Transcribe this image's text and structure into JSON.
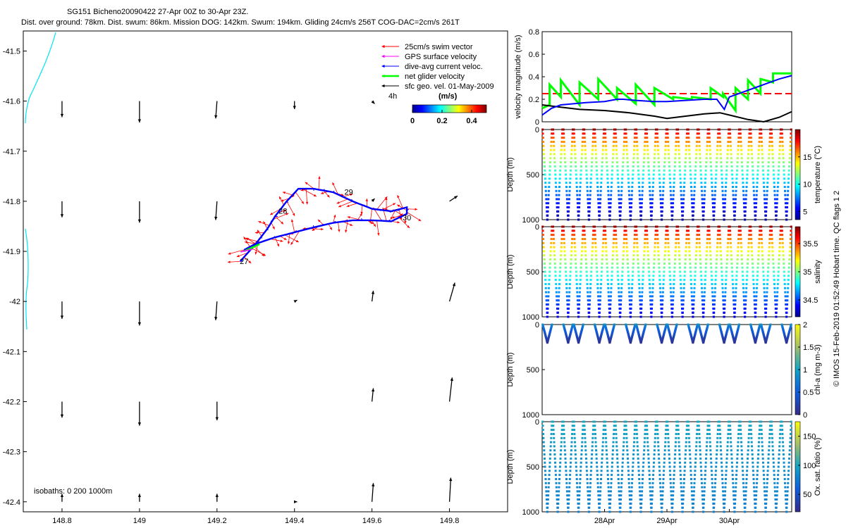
{
  "header": {
    "title": "SG151 Bicheno20090422 27-Apr 00Z to 30-Apr 23Z.",
    "subtitle": "Dist. over ground: 78km. Dist. swum: 86km. Mission DOG: 142km. Swum: 194km. Gliding 24cm/s 256T COG-DAC=2cm/s 261T"
  },
  "footer": {
    "credit": "© IMOS 15-Feb-2019 01:52:49 Hobart time. QC flags 1  2"
  },
  "colors": {
    "swim": "#ff0000",
    "gps": "#ff00ff",
    "dac": "#0000ff",
    "net": "#00ff00",
    "geo": "#000000",
    "coast": "#00e5ee",
    "speed_limit": "#ff0000"
  },
  "chart_data": [
    {
      "type": "scatter",
      "kind": "map",
      "title": "",
      "xlim": [
        148.7,
        149.95
      ],
      "ylim": [
        -42.42,
        -41.46
      ],
      "xticks": [
        148.8,
        149,
        149.2,
        149.4,
        149.6,
        149.8
      ],
      "xtick_labels": [
        "148.8",
        "149",
        "149.2",
        "149.4",
        "149.6",
        "149.8"
      ],
      "yticks": [
        -41.5,
        -41.6,
        -41.7,
        -41.8,
        -41.9,
        -42,
        -42.1,
        -42.2,
        -42.3,
        -42.4
      ],
      "ytick_labels": [
        "-41.5",
        "-41.6",
        "-41.7",
        "-41.8",
        "-41.9",
        "-42",
        "-42.1",
        "-42.2",
        "-42.3",
        "-42.4"
      ],
      "legend": {
        "placement": "top-right",
        "entries": [
          {
            "label": "25cm/s swim vector",
            "color": "#ff0000"
          },
          {
            "label": "GPS surface velocity",
            "color": "#ff00ff"
          },
          {
            "label": "dive-avg current veloc.",
            "color": "#0000ff"
          },
          {
            "label": "net glider velocity",
            "color": "#00ff00"
          },
          {
            "label": "sfc geo. vel. 01-May-2009",
            "color": "#000000"
          }
        ],
        "scale_label": "4h"
      },
      "colorbar": {
        "label": "(m/s)",
        "ticks": [
          "0",
          "0.2",
          "0.4"
        ],
        "range": [
          0,
          0.5
        ]
      },
      "isobath_note": "isobaths: 0   200  1000m",
      "day_labels": [
        {
          "text": "27",
          "lon": 149.27,
          "lat": -41.925
        },
        {
          "text": "28",
          "lon": 149.37,
          "lat": -41.825
        },
        {
          "text": "29",
          "lon": 149.54,
          "lat": -41.787
        },
        {
          "text": "30",
          "lon": 149.69,
          "lat": -41.838
        }
      ],
      "track_out": [
        [
          149.26,
          -41.92
        ],
        [
          149.3,
          -41.885
        ],
        [
          149.33,
          -41.855
        ],
        [
          149.35,
          -41.83
        ],
        [
          149.38,
          -41.8
        ],
        [
          149.41,
          -41.775
        ],
        [
          149.45,
          -41.775
        ],
        [
          149.5,
          -41.782
        ],
        [
          149.55,
          -41.8
        ],
        [
          149.6,
          -41.815
        ],
        [
          149.65,
          -41.82
        ],
        [
          149.69,
          -41.812
        ]
      ],
      "track_back": [
        [
          149.69,
          -41.825
        ],
        [
          149.65,
          -41.84
        ],
        [
          149.6,
          -41.838
        ],
        [
          149.55,
          -41.838
        ],
        [
          149.5,
          -41.843
        ],
        [
          149.45,
          -41.852
        ],
        [
          149.4,
          -41.862
        ],
        [
          149.35,
          -41.872
        ],
        [
          149.3,
          -41.885
        ],
        [
          149.27,
          -41.897
        ]
      ],
      "geo_vectors": [
        {
          "lon": 148.8,
          "lat": -41.6,
          "u": 0.0,
          "v": -0.06
        },
        {
          "lon": 149.0,
          "lat": -41.6,
          "u": 0.0,
          "v": -0.08
        },
        {
          "lon": 149.2,
          "lat": -41.6,
          "u": -0.005,
          "v": -0.065
        },
        {
          "lon": 149.4,
          "lat": -41.6,
          "u": 0.0,
          "v": -0.03
        },
        {
          "lon": 149.6,
          "lat": -41.6,
          "u": 0.01,
          "v": -0.01
        },
        {
          "lon": 149.8,
          "lat": -41.6,
          "u": 0.0,
          "v": 0.0
        },
        {
          "lon": 148.8,
          "lat": -41.8,
          "u": 0.0,
          "v": -0.06
        },
        {
          "lon": 149.0,
          "lat": -41.8,
          "u": 0.0,
          "v": -0.08
        },
        {
          "lon": 149.2,
          "lat": -41.8,
          "u": -0.005,
          "v": -0.07
        },
        {
          "lon": 149.4,
          "lat": -41.8,
          "u": 0.0,
          "v": 0.0
        },
        {
          "lon": 149.6,
          "lat": -41.8,
          "u": 0.01,
          "v": 0.01
        },
        {
          "lon": 149.8,
          "lat": -41.8,
          "u": 0.03,
          "v": 0.02
        },
        {
          "lon": 148.8,
          "lat": -42.0,
          "u": 0.0,
          "v": -0.065
        },
        {
          "lon": 149.0,
          "lat": -42.0,
          "u": 0.0,
          "v": -0.09
        },
        {
          "lon": 149.2,
          "lat": -42.0,
          "u": -0.005,
          "v": -0.07
        },
        {
          "lon": 149.4,
          "lat": -42.0,
          "u": 0.01,
          "v": 0.005
        },
        {
          "lon": 149.6,
          "lat": -42.0,
          "u": 0.005,
          "v": 0.04
        },
        {
          "lon": 149.8,
          "lat": -42.0,
          "u": 0.02,
          "v": 0.07
        },
        {
          "lon": 148.8,
          "lat": -42.2,
          "u": 0.0,
          "v": -0.06
        },
        {
          "lon": 149.0,
          "lat": -42.2,
          "u": 0.0,
          "v": -0.09
        },
        {
          "lon": 149.2,
          "lat": -42.2,
          "u": 0.0,
          "v": -0.07
        },
        {
          "lon": 149.4,
          "lat": -42.2,
          "u": 0.0,
          "v": 0.0
        },
        {
          "lon": 149.6,
          "lat": -42.2,
          "u": 0.005,
          "v": 0.05
        },
        {
          "lon": 149.8,
          "lat": -42.2,
          "u": 0.01,
          "v": 0.09
        },
        {
          "lon": 148.8,
          "lat": -42.4,
          "u": 0.0,
          "v": 0.03
        },
        {
          "lon": 149.0,
          "lat": -42.4,
          "u": 0.0,
          "v": 0.03
        },
        {
          "lon": 149.2,
          "lat": -42.4,
          "u": 0.0,
          "v": 0.03
        },
        {
          "lon": 149.4,
          "lat": -42.4,
          "u": 0.01,
          "v": 0.0
        },
        {
          "lon": 149.6,
          "lat": -42.4,
          "u": 0.005,
          "v": 0.07
        },
        {
          "lon": 149.8,
          "lat": -42.4,
          "u": 0.005,
          "v": 0.09
        }
      ]
    },
    {
      "type": "line",
      "ylabel": "velocity magnitude (m/s)",
      "xlim": [
        0,
        4
      ],
      "ylim": [
        0,
        0.8
      ],
      "yticks": [
        0,
        0.2,
        0.4,
        0.6,
        0.8
      ],
      "ytick_labels": [
        "0",
        "0.2",
        "0.4",
        "0.6",
        "0.8"
      ],
      "reference_line": 0.25,
      "series": [
        {
          "color": "#0000ff",
          "x": [
            0,
            0.15,
            0.3,
            0.5,
            0.7,
            1.0,
            1.2,
            1.3,
            1.5,
            1.8,
            2.0,
            2.3,
            2.6,
            2.8,
            2.92,
            3.0,
            3.2,
            3.4,
            3.6,
            3.8,
            4.0
          ],
          "values": [
            0.06,
            0.12,
            0.15,
            0.16,
            0.17,
            0.18,
            0.2,
            0.2,
            0.19,
            0.18,
            0.18,
            0.19,
            0.2,
            0.2,
            0.11,
            0.22,
            0.26,
            0.3,
            0.34,
            0.38,
            0.41
          ]
        },
        {
          "color": "#000000",
          "x": [
            0,
            0.3,
            0.6,
            1.0,
            1.4,
            1.8,
            2.0,
            2.3,
            2.6,
            2.85,
            3.0,
            3.3,
            3.55,
            3.8,
            4.0
          ],
          "values": [
            0.15,
            0.13,
            0.11,
            0.1,
            0.08,
            0.05,
            0.03,
            0.05,
            0.07,
            0.08,
            0.06,
            0.02,
            0.0,
            0.04,
            0.09
          ]
        },
        {
          "color": "#00ff00",
          "x": [
            0,
            0.12,
            0.12,
            0.3,
            0.3,
            0.6,
            0.6,
            0.9,
            0.9,
            1.2,
            1.2,
            1.5,
            1.5,
            1.8,
            1.8,
            2.1,
            2.1,
            2.4,
            2.4,
            2.7,
            2.7,
            2.9,
            2.9,
            3.1,
            3.1,
            3.3,
            3.3,
            3.5,
            3.5,
            3.7,
            3.7,
            4.0
          ],
          "values": [
            0.12,
            0.15,
            0.33,
            0.22,
            0.37,
            0.15,
            0.35,
            0.2,
            0.38,
            0.2,
            0.3,
            0.16,
            0.33,
            0.15,
            0.3,
            0.2,
            0.22,
            0.2,
            0.22,
            0.2,
            0.3,
            0.22,
            0.25,
            0.1,
            0.3,
            0.2,
            0.37,
            0.25,
            0.38,
            0.35,
            0.43,
            0.43
          ]
        }
      ]
    },
    {
      "type": "scatter",
      "kind": "section",
      "variable": "temperature",
      "ylabel": "Depth (m)",
      "yticks": [
        0,
        500,
        1000
      ],
      "ytick_labels": [
        "0",
        "500",
        "1000"
      ],
      "ylim": [
        1000,
        0
      ],
      "dives": 24,
      "max_depth": 1000,
      "surface_value": 19.5,
      "deep_value": 4,
      "colorbar": {
        "label": "temperature (°C)",
        "ticks": [
          "5",
          "10",
          "15"
        ],
        "tick_values": [
          5,
          10,
          15
        ],
        "range": [
          3.5,
          20
        ]
      }
    },
    {
      "type": "scatter",
      "kind": "section",
      "variable": "salinity",
      "ylabel": "Depth (m)",
      "yticks": [
        0,
        500,
        1000
      ],
      "ytick_labels": [
        "0",
        "500",
        "1000"
      ],
      "ylim": [
        1000,
        0
      ],
      "dives": 24,
      "max_depth": 1000,
      "surface_value": 35.75,
      "deep_value": 34.35,
      "colorbar": {
        "label": "salinity",
        "ticks": [
          "34.5",
          "35",
          "35.5"
        ],
        "tick_values": [
          34.5,
          35,
          35.5
        ],
        "range": [
          34.2,
          35.8
        ]
      }
    },
    {
      "type": "scatter",
      "kind": "section",
      "variable": "chl-a",
      "ylabel": "Depth (m)",
      "yticks": [
        0,
        500,
        1000
      ],
      "ytick_labels": [
        "0",
        "500",
        "1000"
      ],
      "ylim": [
        1000,
        0
      ],
      "dives": 24,
      "max_depth": 200,
      "surface_value": 0.9,
      "deep_value": 0.1,
      "colorbar": {
        "label": "chl-a (mg m-3)",
        "ticks": [
          "0",
          "0.5",
          "1",
          "1.5",
          "2"
        ],
        "tick_values": [
          0,
          0.5,
          1,
          1.5,
          2
        ],
        "range": [
          0,
          2
        ]
      }
    },
    {
      "type": "scatter",
      "kind": "section",
      "variable": "oxygen",
      "ylabel": "Depth (m)",
      "yticks": [
        0,
        500,
        1000
      ],
      "ytick_labels": [
        "0",
        "500",
        "1000"
      ],
      "ylim": [
        1000,
        0
      ],
      "dives": 24,
      "max_depth": 1000,
      "surface_value": 100,
      "deep_value": 78,
      "colorbar": {
        "label": "Ox. sat. ratio (%)",
        "ticks": [
          "50",
          "100",
          "150"
        ],
        "tick_values": [
          50,
          100,
          150
        ],
        "range": [
          20,
          175
        ]
      },
      "xlim": [
        0,
        4
      ],
      "xticks": [
        1,
        2,
        3
      ],
      "xtick_labels": [
        "28Apr",
        "29Apr",
        "30Apr"
      ]
    }
  ]
}
